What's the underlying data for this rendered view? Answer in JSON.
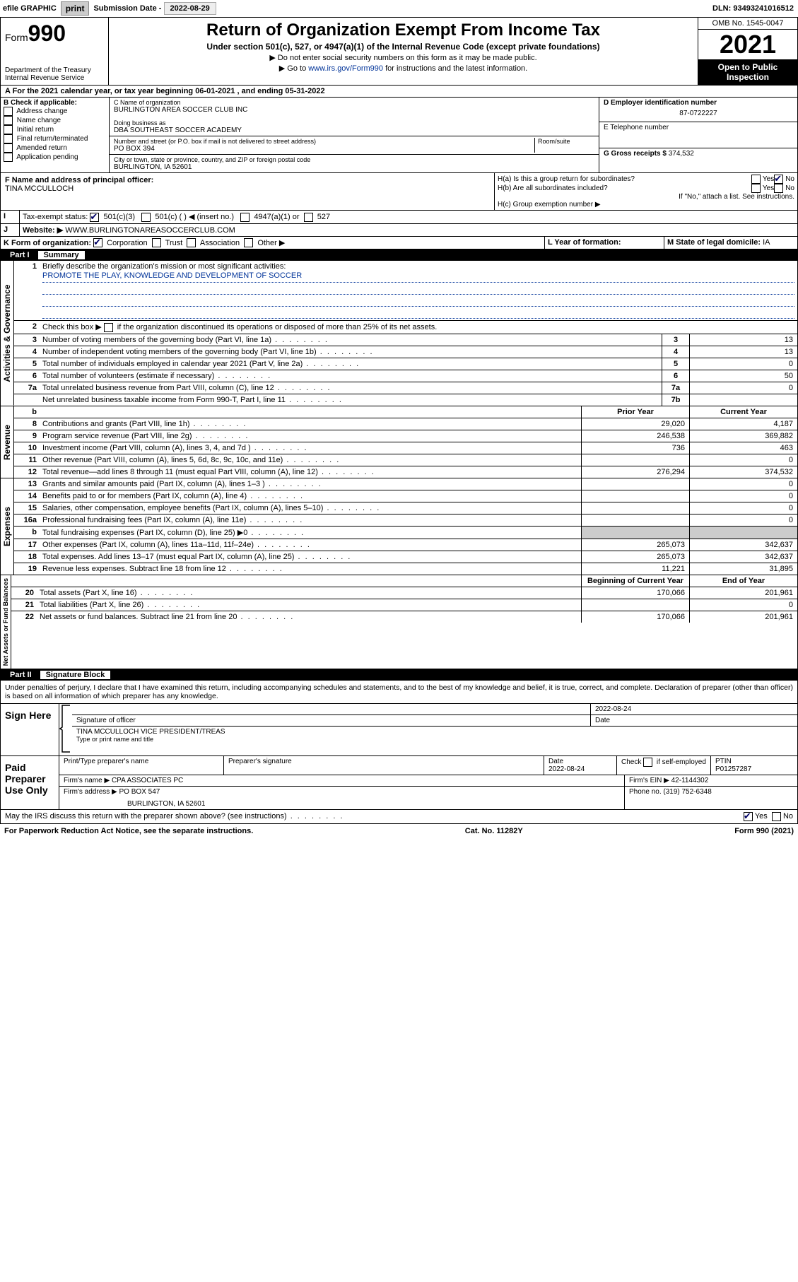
{
  "topbar": {
    "efile": "efile GRAPHIC",
    "print": "print",
    "subdate_label": "Submission Date - ",
    "subdate": "2022-08-29",
    "dln_label": "DLN: ",
    "dln": "93493241016512"
  },
  "header": {
    "form_prefix": "Form",
    "form_num": "990",
    "dept": "Department of the Treasury",
    "irs": "Internal Revenue Service",
    "title": "Return of Organization Exempt From Income Tax",
    "sub": "Under section 501(c), 527, or 4947(a)(1) of the Internal Revenue Code (except private foundations)",
    "note1": "▶ Do not enter social security numbers on this form as it may be made public.",
    "note2_pre": "▶ Go to ",
    "note2_link": "www.irs.gov/Form990",
    "note2_post": " for instructions and the latest information.",
    "omb": "OMB No. 1545-0047",
    "year": "2021",
    "insp": "Open to Public Inspection"
  },
  "sectionA": {
    "taxyear": "A For the 2021 calendar year, or tax year beginning 06-01-2021   , and ending 05-31-2022",
    "B_label": "B Check if applicable:",
    "B_items": [
      "Address change",
      "Name change",
      "Initial return",
      "Final return/terminated",
      "Amended return",
      "Application pending"
    ],
    "C_name_label": "C Name of organization",
    "C_name": "BURLINGTON AREA SOCCER CLUB INC",
    "dba_label": "Doing business as",
    "dba": "DBA SOUTHEAST SOCCER ACADEMY",
    "street_label": "Number and street (or P.O. box if mail is not delivered to street address)",
    "room_label": "Room/suite",
    "street": "PO BOX 394",
    "city_label": "City or town, state or province, country, and ZIP or foreign postal code",
    "city": "BURLINGTON, IA  52601",
    "D_label": "D Employer identification number",
    "D_val": "87-0722227",
    "E_label": "E Telephone number",
    "G_label": "G Gross receipts $ ",
    "G_val": "374,532",
    "F_label": "F  Name and address of principal officer:",
    "F_val": "TINA MCCULLOCH",
    "Ha": "H(a)  Is this a group return for subordinates?",
    "Hb": "H(b)  Are all subordinates included?",
    "Hb_note": "If \"No,\" attach a list. See instructions.",
    "Hc": "H(c)  Group exemption number ▶",
    "yes": "Yes",
    "no": "No",
    "I_label": "Tax-exempt status:",
    "I_501c3": "501(c)(3)",
    "I_501c": "501(c) (  ) ◀ (insert no.)",
    "I_4947": "4947(a)(1) or",
    "I_527": "527",
    "J_label": "Website: ▶",
    "J_val": "WWW.BURLINGTONAREASOCCERCLUB.COM",
    "K_label": "K Form of organization:",
    "K_corp": "Corporation",
    "K_trust": "Trust",
    "K_assoc": "Association",
    "K_other": "Other ▶",
    "L_label": "L Year of formation:",
    "M_label": "M State of legal domicile: ",
    "M_val": "IA"
  },
  "part1": {
    "bar_num": "Part I",
    "bar_title": "Summary",
    "vlabels": [
      "Activities & Governance",
      "Revenue",
      "Expenses",
      "Net Assets or Fund Balances"
    ],
    "l1": "Briefly describe the organization's mission or most significant activities:",
    "l1_val": "PROMOTE THE PLAY, KNOWLEDGE AND DEVELOPMENT OF SOCCER",
    "l2": "Check this box ▶       if the organization discontinued its operations or disposed of more than 25% of its net assets.",
    "rows_gov": [
      {
        "n": "3",
        "t": "Number of voting members of the governing body (Part VI, line 1a)",
        "b": "3",
        "v": "13"
      },
      {
        "n": "4",
        "t": "Number of independent voting members of the governing body (Part VI, line 1b)",
        "b": "4",
        "v": "13"
      },
      {
        "n": "5",
        "t": "Total number of individuals employed in calendar year 2021 (Part V, line 2a)",
        "b": "5",
        "v": "0"
      },
      {
        "n": "6",
        "t": "Total number of volunteers (estimate if necessary)",
        "b": "6",
        "v": "50"
      },
      {
        "n": "7a",
        "t": "Total unrelated business revenue from Part VIII, column (C), line 12",
        "b": "7a",
        "v": "0"
      },
      {
        "n": "",
        "t": "Net unrelated business taxable income from Form 990-T, Part I, line 11",
        "b": "7b",
        "v": ""
      }
    ],
    "hdr_b": "b",
    "hdr_prior": "Prior Year",
    "hdr_curr": "Current Year",
    "rows_rev": [
      {
        "n": "8",
        "t": "Contributions and grants (Part VIII, line 1h)",
        "p": "29,020",
        "c": "4,187"
      },
      {
        "n": "9",
        "t": "Program service revenue (Part VIII, line 2g)",
        "p": "246,538",
        "c": "369,882"
      },
      {
        "n": "10",
        "t": "Investment income (Part VIII, column (A), lines 3, 4, and 7d )",
        "p": "736",
        "c": "463"
      },
      {
        "n": "11",
        "t": "Other revenue (Part VIII, column (A), lines 5, 6d, 8c, 9c, 10c, and 11e)",
        "p": "",
        "c": "0"
      },
      {
        "n": "12",
        "t": "Total revenue—add lines 8 through 11 (must equal Part VIII, column (A), line 12)",
        "p": "276,294",
        "c": "374,532"
      }
    ],
    "rows_exp": [
      {
        "n": "13",
        "t": "Grants and similar amounts paid (Part IX, column (A), lines 1–3 )",
        "p": "",
        "c": "0"
      },
      {
        "n": "14",
        "t": "Benefits paid to or for members (Part IX, column (A), line 4)",
        "p": "",
        "c": "0"
      },
      {
        "n": "15",
        "t": "Salaries, other compensation, employee benefits (Part IX, column (A), lines 5–10)",
        "p": "",
        "c": "0"
      },
      {
        "n": "16a",
        "t": "Professional fundraising fees (Part IX, column (A), line 11e)",
        "p": "",
        "c": "0"
      },
      {
        "n": "b",
        "t": "Total fundraising expenses (Part IX, column (D), line 25) ▶0",
        "p": "SHADE",
        "c": "SHADE"
      },
      {
        "n": "17",
        "t": "Other expenses (Part IX, column (A), lines 11a–11d, 11f–24e)",
        "p": "265,073",
        "c": "342,637"
      },
      {
        "n": "18",
        "t": "Total expenses. Add lines 13–17 (must equal Part IX, column (A), line 25)",
        "p": "265,073",
        "c": "342,637"
      },
      {
        "n": "19",
        "t": "Revenue less expenses. Subtract line 18 from line 12",
        "p": "11,221",
        "c": "31,895"
      }
    ],
    "hdr_begin": "Beginning of Current Year",
    "hdr_end": "End of Year",
    "rows_net": [
      {
        "n": "20",
        "t": "Total assets (Part X, line 16)",
        "p": "170,066",
        "c": "201,961"
      },
      {
        "n": "21",
        "t": "Total liabilities (Part X, line 26)",
        "p": "",
        "c": "0"
      },
      {
        "n": "22",
        "t": "Net assets or fund balances. Subtract line 21 from line 20",
        "p": "170,066",
        "c": "201,961"
      }
    ]
  },
  "part2": {
    "bar_num": "Part II",
    "bar_title": "Signature Block",
    "intro": "Under penalties of perjury, I declare that I have examined this return, including accompanying schedules and statements, and to the best of my knowledge and belief, it is true, correct, and complete. Declaration of preparer (other than officer) is based on all information of which preparer has any knowledge.",
    "sign_here": "Sign Here",
    "sig_date": "2022-08-24",
    "sig_officer": "Signature of officer",
    "sig_date_lbl": "Date",
    "sig_name": "TINA MCCULLOCH  VICE PRESIDENT/TREAS",
    "sig_name_lbl": "Type or print name and title",
    "paid": "Paid Preparer Use Only",
    "prep_name_lbl": "Print/Type preparer's name",
    "prep_sig_lbl": "Preparer's signature",
    "prep_date_lbl": "Date",
    "prep_date": "2022-08-24",
    "prep_self": "Check        if self-employed",
    "ptin_lbl": "PTIN",
    "ptin": "P01257287",
    "firm_name_lbl": "Firm's name     ▶ ",
    "firm_name": "CPA ASSOCIATES PC",
    "firm_ein_lbl": "Firm's EIN ▶ ",
    "firm_ein": "42-1144302",
    "firm_addr_lbl": "Firm's address ▶ ",
    "firm_addr1": "PO BOX 547",
    "firm_addr2": "BURLINGTON, IA  52601",
    "phone_lbl": "Phone no. ",
    "phone": "(319) 752-6348",
    "discuss": "May the IRS discuss this return with the preparer shown above? (see instructions)"
  },
  "footer": {
    "left": "For Paperwork Reduction Act Notice, see the separate instructions.",
    "mid": "Cat. No. 11282Y",
    "right": "Form 990 (2021)"
  }
}
